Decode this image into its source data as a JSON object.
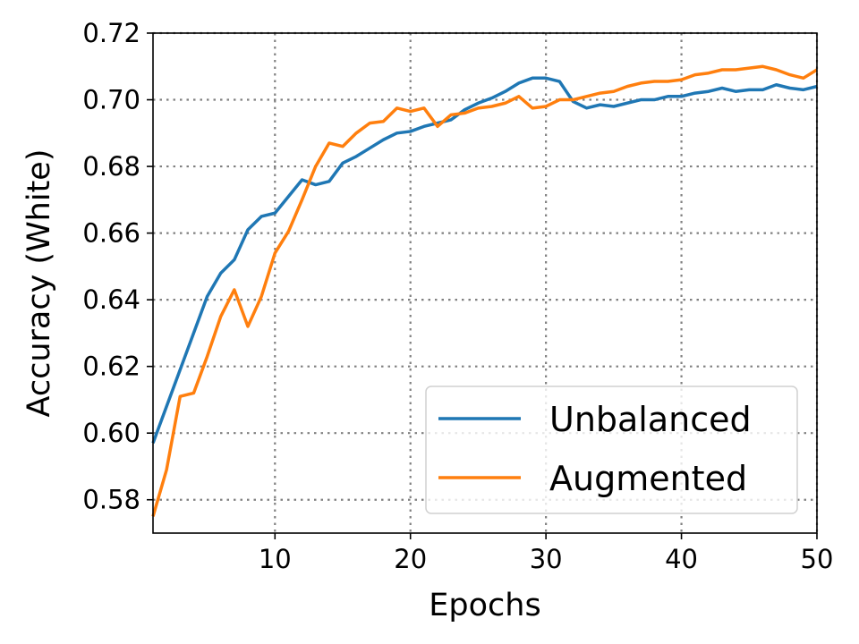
{
  "chart_data": {
    "type": "line",
    "xlabel": "Epochs",
    "ylabel": "Accuracy (White)",
    "xlim": [
      1,
      50
    ],
    "ylim": [
      0.57,
      0.72
    ],
    "xticks": [
      10,
      20,
      30,
      40,
      50
    ],
    "xtick_labels": [
      "10",
      "20",
      "30",
      "40",
      "50"
    ],
    "yticks": [
      0.58,
      0.6,
      0.62,
      0.64,
      0.66,
      0.68,
      0.7,
      0.72
    ],
    "ytick_labels": [
      "0.58",
      "0.60",
      "0.62",
      "0.64",
      "0.66",
      "0.68",
      "0.70",
      "0.72"
    ],
    "grid": true,
    "legend_position": "lower-right",
    "x": [
      1,
      2,
      3,
      4,
      5,
      6,
      7,
      8,
      9,
      10,
      11,
      12,
      13,
      14,
      15,
      16,
      17,
      18,
      19,
      20,
      21,
      22,
      23,
      24,
      25,
      26,
      27,
      28,
      29,
      30,
      31,
      32,
      33,
      34,
      35,
      36,
      37,
      38,
      39,
      40,
      41,
      42,
      43,
      44,
      45,
      46,
      47,
      48,
      49,
      50
    ],
    "series": [
      {
        "name": "Unbalanced",
        "color": "#1f77b4",
        "values": [
          0.597,
          0.608,
          0.619,
          0.63,
          0.641,
          0.648,
          0.652,
          0.661,
          0.665,
          0.666,
          0.671,
          0.676,
          0.6745,
          0.6755,
          0.681,
          0.683,
          0.6855,
          0.688,
          0.69,
          0.6905,
          0.692,
          0.693,
          0.694,
          0.697,
          0.699,
          0.7005,
          0.7025,
          0.705,
          0.7065,
          0.7065,
          0.7055,
          0.6995,
          0.6975,
          0.6985,
          0.698,
          0.699,
          0.7,
          0.7,
          0.701,
          0.701,
          0.702,
          0.7025,
          0.7035,
          0.7025,
          0.703,
          0.703,
          0.7045,
          0.7035,
          0.703,
          0.704
        ]
      },
      {
        "name": "Augmented",
        "color": "#ff7f0e",
        "values": [
          0.575,
          0.589,
          0.611,
          0.612,
          0.623,
          0.635,
          0.643,
          0.632,
          0.641,
          0.654,
          0.6605,
          0.67,
          0.68,
          0.687,
          0.686,
          0.69,
          0.693,
          0.6935,
          0.6975,
          0.6965,
          0.6975,
          0.692,
          0.6955,
          0.696,
          0.6975,
          0.698,
          0.699,
          0.701,
          0.6975,
          0.698,
          0.7,
          0.7,
          0.701,
          0.702,
          0.7025,
          0.704,
          0.705,
          0.7055,
          0.7055,
          0.706,
          0.7075,
          0.708,
          0.709,
          0.709,
          0.7095,
          0.71,
          0.709,
          0.7075,
          0.7065,
          0.709
        ]
      }
    ]
  }
}
